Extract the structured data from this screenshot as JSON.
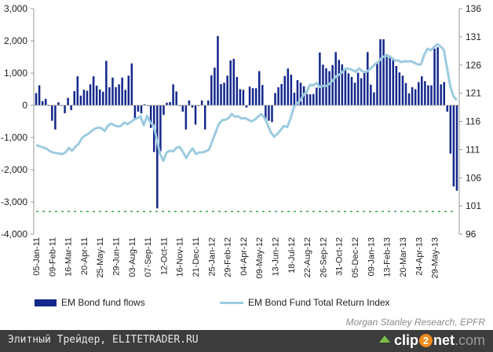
{
  "chart_data": {
    "type": "bar",
    "title": "",
    "xlabel": "",
    "ylabel": "",
    "ylim": [
      -4000,
      3000
    ],
    "y_ticks": [
      "3,000",
      "2,000",
      "1,000",
      "0",
      "-1,000",
      "-2,000",
      "-3,000",
      "-4,000"
    ],
    "y_tick_values": [
      3000,
      2000,
      1000,
      0,
      -1000,
      -2000,
      -3000,
      -4000
    ],
    "y2lim": [
      96,
      136
    ],
    "y2_ticks": [
      "136",
      "131",
      "126",
      "121",
      "116",
      "111",
      "106",
      "101",
      "96"
    ],
    "y2_tick_values": [
      136,
      131,
      126,
      121,
      116,
      111,
      106,
      101,
      96
    ],
    "x_tick_labels": [
      "05-Jan-11",
      "09-Feb-11",
      "16-Mar-11",
      "20-Apr-11",
      "25-May-11",
      "29-Jun-11",
      "03-Aug-11",
      "07-Sep-11",
      "12-Oct-11",
      "16-Nov-11",
      "21-Dec-11",
      "25-Jan-12",
      "29-Feb-12",
      "04-Apr-12",
      "09-May-12",
      "13-Jun-12",
      "18-Jul-12",
      "22-Aug-12",
      "26-Sep-12",
      "31-Oct-12",
      "05-Dec-12",
      "09-Jan-13",
      "13-Feb-13",
      "20-Mar-13",
      "24-Apr-13",
      "29-May-13"
    ],
    "reference_line": {
      "label": "",
      "value": -3300,
      "style": "dotted",
      "color": "#3aa655"
    },
    "grid": false,
    "legend_position": "bottom",
    "series": [
      {
        "name": "EM Bond fund flows",
        "type": "bar",
        "axis": "left",
        "color": "#14288c",
        "values": [
          380,
          620,
          130,
          200,
          -20,
          -480,
          -750,
          90,
          -10,
          -250,
          230,
          -150,
          440,
          900,
          300,
          480,
          450,
          650,
          900,
          610,
          490,
          420,
          1380,
          560,
          860,
          560,
          650,
          860,
          480,
          920,
          1300,
          -420,
          -200,
          -250,
          30,
          -20,
          -700,
          -1450,
          -3200,
          -1430,
          -300,
          80,
          100,
          650,
          430,
          -10,
          -200,
          -750,
          150,
          -70,
          -600,
          0,
          150,
          -750,
          150,
          930,
          1170,
          2150,
          660,
          700,
          920,
          1390,
          1440,
          880,
          500,
          480,
          -70,
          580,
          530,
          530,
          1060,
          630,
          -480,
          -480,
          -520,
          380,
          560,
          660,
          910,
          1140,
          950,
          390,
          780,
          700,
          590,
          350,
          340,
          350,
          550,
          1640,
          1260,
          1150,
          1060,
          1250,
          1650,
          1410,
          1270,
          1140,
          990,
          880,
          700,
          1010,
          840,
          1050,
          1650,
          640,
          400,
          1300,
          2050,
          2050,
          1580,
          1540,
          1420,
          1220,
          1020,
          920,
          690,
          370,
          560,
          500,
          720,
          900,
          750,
          620,
          620,
          1760,
          1800,
          650,
          720,
          -200,
          -1500,
          -2520,
          -2650
        ]
      },
      {
        "name": "EM Bond Fund Total Return Index",
        "type": "line",
        "axis": "right",
        "color": "#9ccbe0",
        "values": [
          111.8,
          111.6,
          111.4,
          111.2,
          110.8,
          110.5,
          110.4,
          110.3,
          110.2,
          110.5,
          111.3,
          110.8,
          111.5,
          112.0,
          113.0,
          113.5,
          113.8,
          114.3,
          114.7,
          114.9,
          114.8,
          114.3,
          115.2,
          115.6,
          115.3,
          115.1,
          115.2,
          115.8,
          115.5,
          115.9,
          116.3,
          116.6,
          116.9,
          115.3,
          117.0,
          115.8,
          115.3,
          112.8,
          110.2,
          109.0,
          110.5,
          110.8,
          110.7,
          111.3,
          111.5,
          110.6,
          109.5,
          110.5,
          111.2,
          110.2,
          110.5,
          110.5,
          110.7,
          111.0,
          112.5,
          114.0,
          115.5,
          116.2,
          116.3,
          116.6,
          117.3,
          116.8,
          116.9,
          116.5,
          116.6,
          116.3,
          116.0,
          116.3,
          116.8,
          117.3,
          116.7,
          115.4,
          114.0,
          113.3,
          113.8,
          114.5,
          115.2,
          115.0,
          116.5,
          118.5,
          119.2,
          119.7,
          120.7,
          121.3,
          122.5,
          122.4,
          122.8,
          122.1,
          122.3,
          122.3,
          122.7,
          123.3,
          124.0,
          124.3,
          124.8,
          125.4,
          125.3,
          125.1,
          124.8,
          125.4,
          124.9,
          124.7,
          125.1,
          125.6,
          126.2,
          126.6,
          127.3,
          127.6,
          127.6,
          127.3,
          126.8,
          126.8,
          126.5,
          126.7,
          126.6,
          126.7,
          126.4,
          126.1,
          126.1,
          127.8,
          128.9,
          128.6,
          129.2,
          129.7,
          129.3,
          128.7,
          125.5,
          122.2,
          120.4,
          119.8
        ]
      }
    ]
  },
  "legend": {
    "bar_label": "EM Bond fund flows",
    "line_label": "EM Bond Fund Total Return Index"
  },
  "source": "Morgan Stanley Research, EPFR",
  "footer": {
    "text": "Элитный Трейдер, ELITETRADER.RU",
    "brand_prefix": "clip",
    "brand_two": "2",
    "brand_mid": "net",
    "brand_suffix": ".com"
  }
}
